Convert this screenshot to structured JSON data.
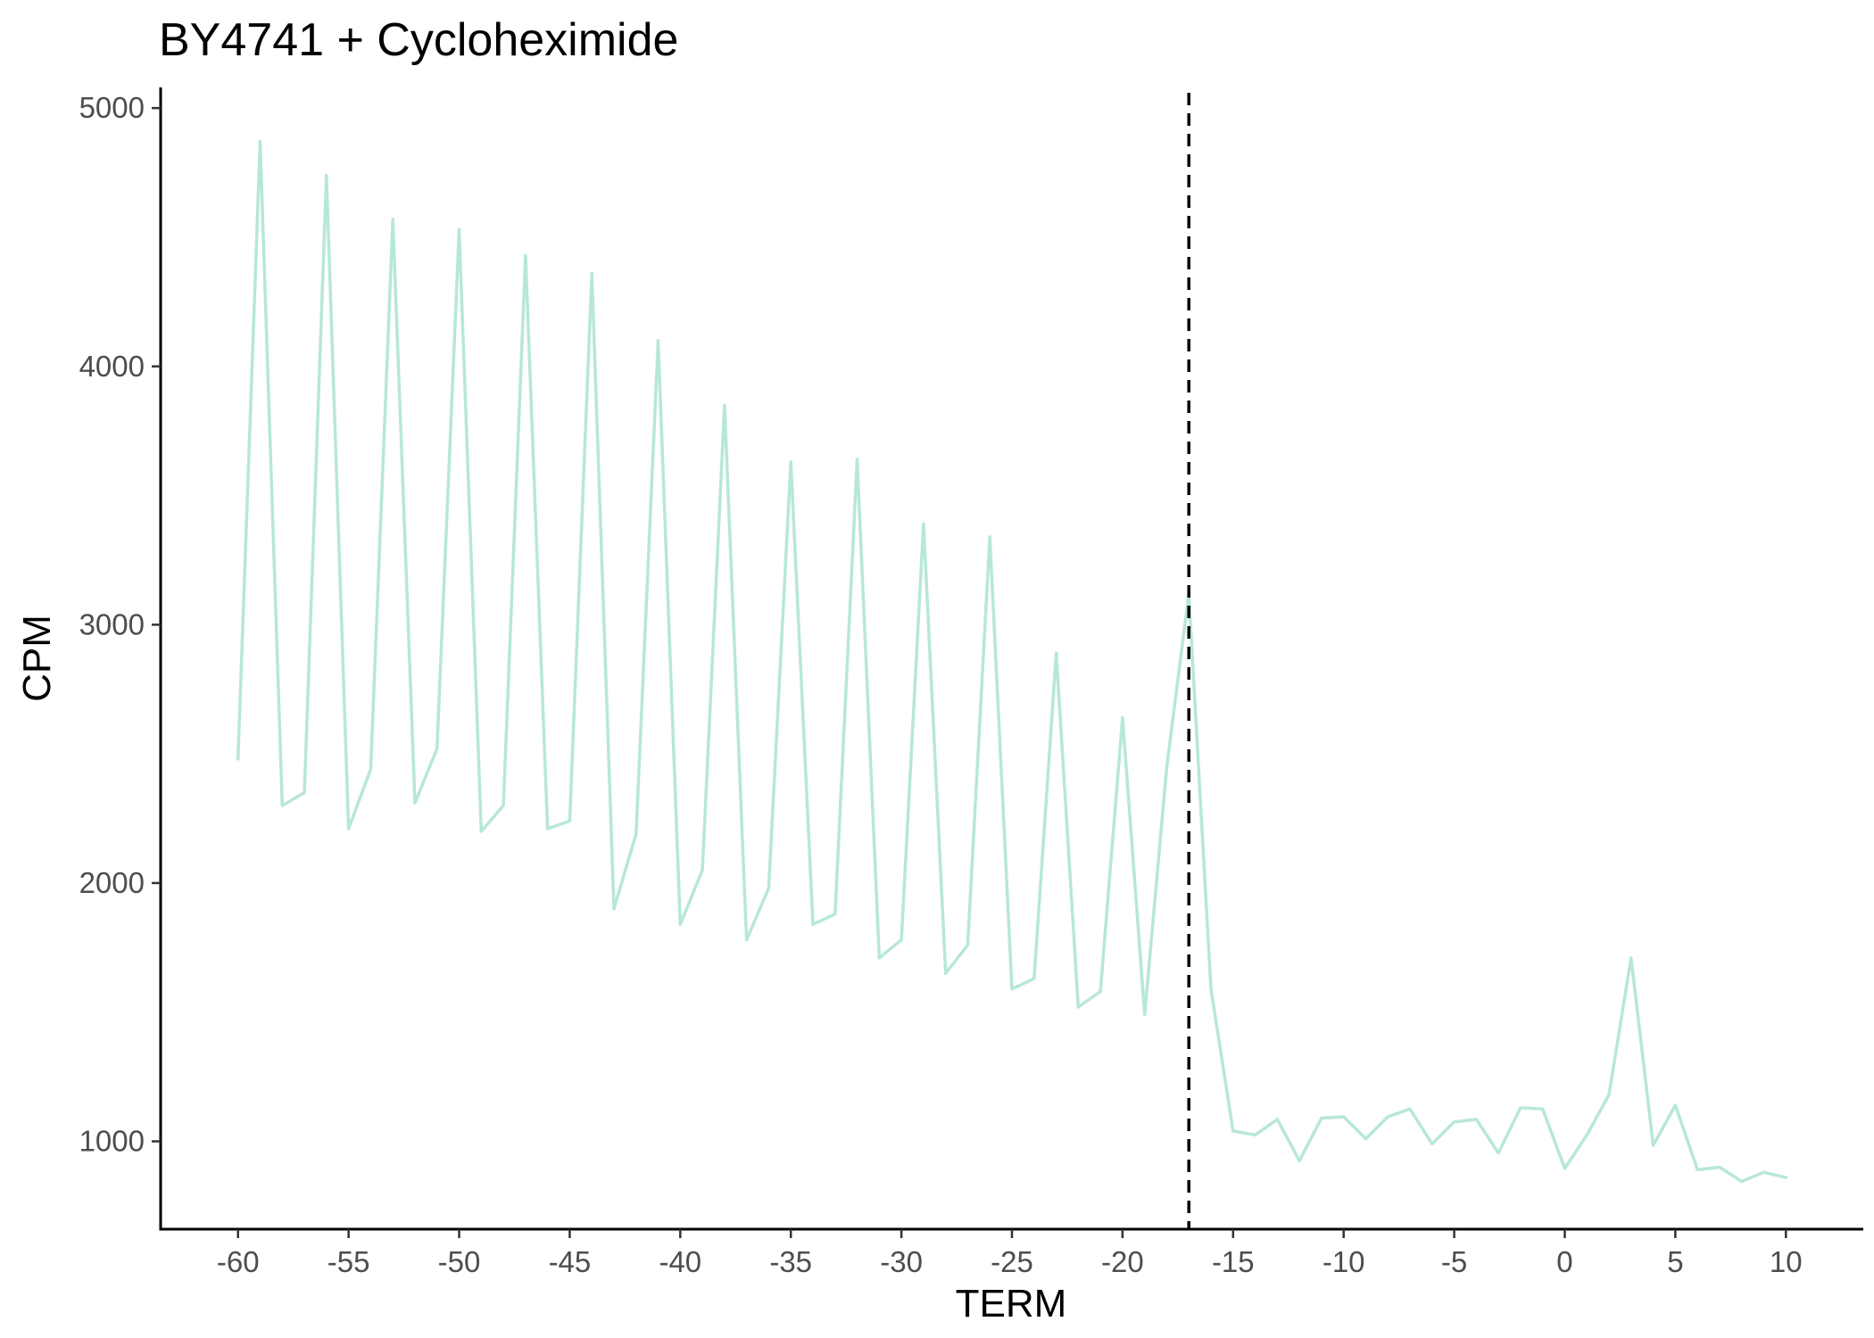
{
  "chart_data": {
    "type": "line",
    "title": "BY4741 + Cycloheximide",
    "xlabel": "TERM",
    "ylabel": "CPM",
    "xlim": [
      -63.5,
      13.5
    ],
    "ylim": [
      660,
      5080
    ],
    "xticks": [
      -60,
      -55,
      -50,
      -45,
      -40,
      -35,
      -30,
      -25,
      -20,
      -15,
      -10,
      -5,
      0,
      5,
      10
    ],
    "yticks": [
      1000,
      2000,
      3000,
      4000,
      5000
    ],
    "grid": false,
    "legend": "none",
    "reference_line": {
      "x": -17,
      "style": "dashed",
      "color": "#000000"
    },
    "series": [
      {
        "color": "#b7e8d4",
        "x": [
          -60,
          -59,
          -58,
          -57,
          -56,
          -55,
          -54,
          -53,
          -52,
          -51,
          -50,
          -49,
          -48,
          -47,
          -46,
          -45,
          -44,
          -43,
          -42,
          -41,
          -40,
          -39,
          -38,
          -37,
          -36,
          -35,
          -34,
          -33,
          -32,
          -31,
          -30,
          -29,
          -28,
          -27,
          -26,
          -25,
          -24,
          -23,
          -22,
          -21,
          -20,
          -19,
          -18,
          -17,
          -16,
          -15,
          -14,
          -13,
          -12,
          -11,
          -10,
          -9,
          -8,
          -7,
          -6,
          -5,
          -4,
          -3,
          -2,
          -1,
          0,
          1,
          2,
          3,
          4,
          5,
          6,
          7,
          8,
          9,
          10
        ],
        "y": [
          2480,
          4870,
          2300,
          2350,
          4740,
          2210,
          2440,
          4570,
          2310,
          2520,
          4530,
          2200,
          2300,
          4430,
          2210,
          2240,
          4360,
          1900,
          2190,
          4100,
          1840,
          2050,
          3850,
          1780,
          1980,
          3630,
          1840,
          1880,
          3640,
          1710,
          1780,
          3390,
          1650,
          1760,
          3340,
          1590,
          1630,
          2890,
          1520,
          1580,
          2640,
          1490,
          2450,
          3120,
          1590,
          1040,
          1025,
          1085,
          925,
          1090,
          1095,
          1010,
          1095,
          1125,
          990,
          1075,
          1085,
          955,
          1130,
          1125,
          895,
          1025,
          1180,
          1710,
          985,
          1140,
          890,
          900,
          845,
          880,
          860
        ]
      }
    ]
  }
}
